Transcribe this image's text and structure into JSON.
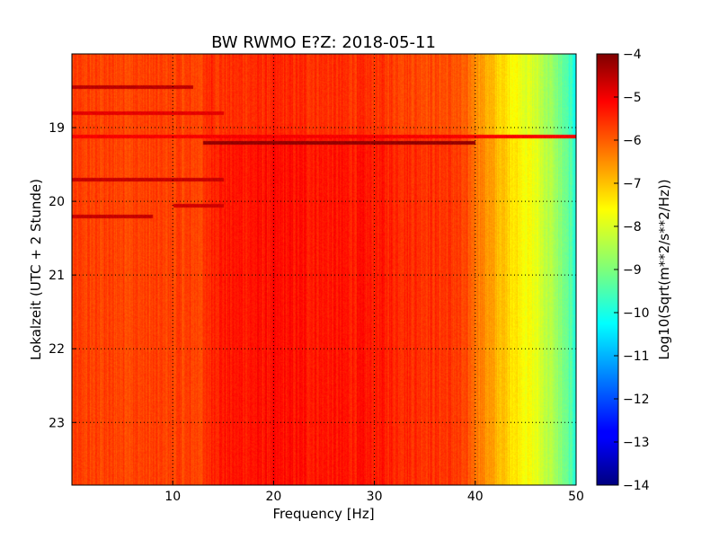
{
  "chart_data": {
    "type": "heatmap",
    "title": "BW RWMO E?Z: 2018-05-11",
    "xlabel": "Frequency [Hz]",
    "ylabel": "Lokalzeit (UTC + 2 Stunde)",
    "xlim": [
      0,
      50
    ],
    "ylim": [
      18.0,
      23.85
    ],
    "y_inverted": true,
    "x_ticks": [
      10,
      20,
      30,
      40,
      50
    ],
    "y_ticks": [
      19,
      20,
      21,
      22,
      23
    ],
    "grid": true,
    "colorbar": {
      "label": "Log10(Sqrt(m**2/s**2/Hz))",
      "min": -14,
      "max": -4,
      "ticks": [
        -4,
        -5,
        -6,
        -7,
        -8,
        -9,
        -10,
        -11,
        -12,
        -13,
        -14
      ],
      "colormap": "jet"
    },
    "spectrum_profile": [
      {
        "f": 0,
        "v": -5.9
      },
      {
        "f": 13,
        "v": -5.9
      },
      {
        "f": 14,
        "v": -5.5
      },
      {
        "f": 20,
        "v": -5.4
      },
      {
        "f": 30,
        "v": -5.5
      },
      {
        "f": 38,
        "v": -5.8
      },
      {
        "f": 40,
        "v": -6.3
      },
      {
        "f": 42,
        "v": -7.0
      },
      {
        "f": 44,
        "v": -7.5
      },
      {
        "f": 46,
        "v": -8.0
      },
      {
        "f": 48,
        "v": -8.7
      },
      {
        "f": 50,
        "v": -9.8
      }
    ],
    "events": [
      {
        "time": 18.45,
        "f_from": 0,
        "f_to": 12,
        "v": -4.6
      },
      {
        "time": 18.8,
        "f_from": 0,
        "f_to": 15,
        "v": -5.0
      },
      {
        "time": 19.12,
        "f_from": 0,
        "f_to": 50,
        "v": -5.2
      },
      {
        "time": 19.2,
        "f_from": 13,
        "f_to": 40,
        "v": -4.2
      },
      {
        "time": 19.7,
        "f_from": 0,
        "f_to": 15,
        "v": -4.7
      },
      {
        "time": 20.05,
        "f_from": 10,
        "f_to": 15,
        "v": -4.8
      },
      {
        "time": 20.2,
        "f_from": 0,
        "f_to": 8,
        "v": -4.7
      }
    ]
  }
}
